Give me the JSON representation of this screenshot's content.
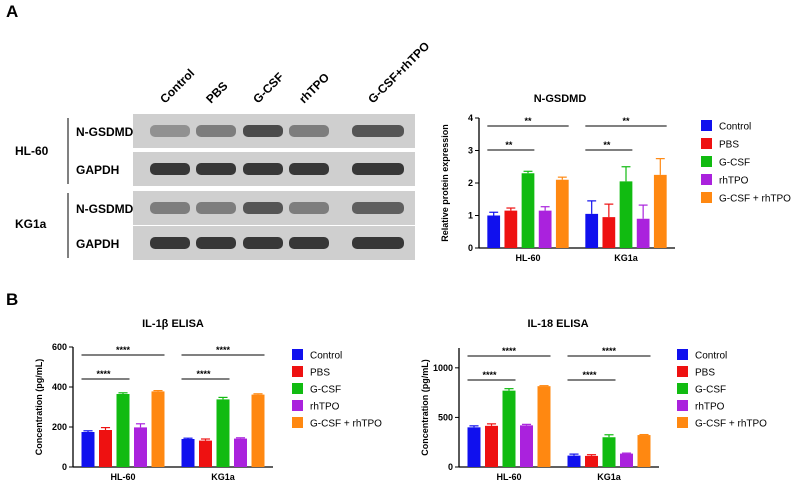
{
  "figure": {
    "panel_a": "A",
    "panel_b": "B"
  },
  "blot": {
    "column_labels": [
      "Control",
      "PBS",
      "G-CSF",
      "rhTPO",
      "G-CSF+rhTPO"
    ],
    "cell_lines": [
      "HL-60",
      "KG1a"
    ],
    "row_labels": [
      "N-GSDMD",
      "GAPDH",
      "N-GSDMD",
      "GAPDH"
    ],
    "band_intensity": [
      [
        0.45,
        0.55,
        0.8,
        0.55,
        0.75
      ],
      [
        0.9,
        0.9,
        0.9,
        0.9,
        0.9
      ],
      [
        0.55,
        0.55,
        0.75,
        0.55,
        0.7
      ],
      [
        0.9,
        0.9,
        0.9,
        0.9,
        0.9
      ]
    ]
  },
  "legend": {
    "items": [
      {
        "name": "Control",
        "color": "#1010ee"
      },
      {
        "name": "PBS",
        "color": "#ee1111"
      },
      {
        "name": "G-CSF",
        "color": "#11bb11"
      },
      {
        "name": "rhTPO",
        "color": "#aa22dd"
      },
      {
        "name": "G-CSF + rhTPO",
        "color": "#ff8811"
      }
    ]
  },
  "chart_data": [
    {
      "type": "bar",
      "title": "N-GSDMD",
      "xlabel": "",
      "ylabel": "Relative protein expression",
      "categories": [
        "HL-60",
        "KG1a"
      ],
      "ylim": [
        0,
        4
      ],
      "yticks": [
        "0",
        "1",
        "2",
        "3",
        "4"
      ],
      "series": [
        {
          "name": "Control",
          "values": [
            1.0,
            1.05
          ],
          "errors": [
            0.1,
            0.4
          ]
        },
        {
          "name": "PBS",
          "values": [
            1.15,
            0.95
          ],
          "errors": [
            0.08,
            0.4
          ]
        },
        {
          "name": "G-CSF",
          "values": [
            2.3,
            2.05
          ],
          "errors": [
            0.06,
            0.45
          ]
        },
        {
          "name": "rhTPO",
          "values": [
            1.15,
            0.9
          ],
          "errors": [
            0.12,
            0.42
          ]
        },
        {
          "name": "G-CSF + rhTPO",
          "values": [
            2.1,
            2.25
          ],
          "errors": [
            0.08,
            0.5
          ]
        }
      ],
      "significance": [
        {
          "group": 0,
          "from": 0,
          "to": 4,
          "label": "**"
        },
        {
          "group": 0,
          "from": 0,
          "to": 2,
          "label": "**"
        },
        {
          "group": 1,
          "from": 0,
          "to": 4,
          "label": "**"
        },
        {
          "group": 1,
          "from": 0,
          "to": 2,
          "label": "**"
        }
      ]
    },
    {
      "type": "bar",
      "title": "IL-1β ELISA",
      "xlabel": "",
      "ylabel": "Concentration (pg/mL)",
      "categories": [
        "HL-60",
        "KG1a"
      ],
      "ylim": [
        0,
        600
      ],
      "yticks": [
        "0",
        "200",
        "400",
        "600"
      ],
      "series": [
        {
          "name": "Control",
          "values": [
            175,
            140
          ],
          "errors": [
            6,
            4
          ]
        },
        {
          "name": "PBS",
          "values": [
            185,
            132
          ],
          "errors": [
            12,
            8
          ]
        },
        {
          "name": "G-CSF",
          "values": [
            365,
            338
          ],
          "errors": [
            6,
            10
          ]
        },
        {
          "name": "rhTPO",
          "values": [
            198,
            142
          ],
          "errors": [
            18,
            4
          ]
        },
        {
          "name": "G-CSF + rhTPO",
          "values": [
            378,
            362
          ],
          "errors": [
            4,
            4
          ]
        }
      ],
      "significance": [
        {
          "group": 0,
          "from": 0,
          "to": 4,
          "label": "****"
        },
        {
          "group": 0,
          "from": 0,
          "to": 2,
          "label": "****"
        },
        {
          "group": 1,
          "from": 0,
          "to": 4,
          "label": "****"
        },
        {
          "group": 1,
          "from": 0,
          "to": 2,
          "label": "****"
        }
      ]
    },
    {
      "type": "bar",
      "title": "IL-18 ELISA",
      "xlabel": "",
      "ylabel": "Concentration (pg/mL)",
      "categories": [
        "HL-60",
        "KG1a"
      ],
      "ylim": [
        0,
        1200
      ],
      "yticks": [
        "0",
        "500",
        "1000"
      ],
      "series": [
        {
          "name": "Control",
          "values": [
            400,
            115
          ],
          "errors": [
            15,
            15
          ]
        },
        {
          "name": "PBS",
          "values": [
            415,
            112
          ],
          "errors": [
            20,
            12
          ]
        },
        {
          "name": "G-CSF",
          "values": [
            770,
            300
          ],
          "errors": [
            20,
            25
          ]
        },
        {
          "name": "rhTPO",
          "values": [
            420,
            135
          ],
          "errors": [
            10,
            5
          ]
        },
        {
          "name": "G-CSF + rhTPO",
          "values": [
            815,
            322
          ],
          "errors": [
            5,
            5
          ]
        }
      ],
      "significance": [
        {
          "group": 0,
          "from": 0,
          "to": 4,
          "label": "****"
        },
        {
          "group": 0,
          "from": 0,
          "to": 2,
          "label": "****"
        },
        {
          "group": 1,
          "from": 0,
          "to": 4,
          "label": "****"
        },
        {
          "group": 1,
          "from": 0,
          "to": 2,
          "label": "****"
        }
      ]
    }
  ]
}
